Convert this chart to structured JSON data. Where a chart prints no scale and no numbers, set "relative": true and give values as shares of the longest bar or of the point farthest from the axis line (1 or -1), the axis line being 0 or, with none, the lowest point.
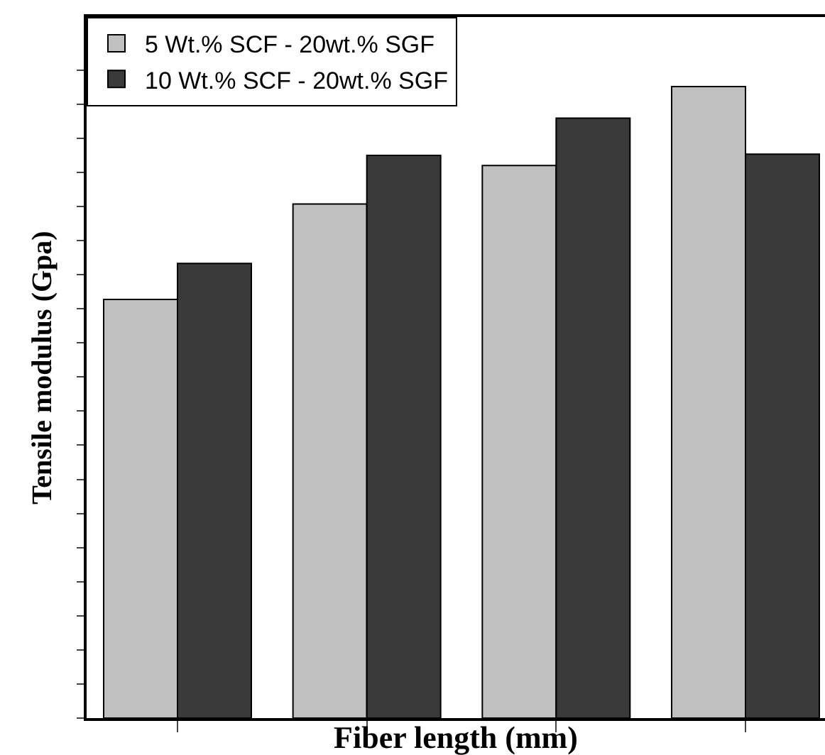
{
  "chart_data": {
    "type": "bar",
    "xlabel": "Fiber length (mm)",
    "ylabel": "Tensile modulus (Gpa)",
    "relative": true,
    "categories": [
      null,
      null,
      null,
      null
    ],
    "grid": false,
    "legend": "top left",
    "series": [
      {
        "name": "5 Wt.% SCF - 20wt.% SGF",
        "color": "#c0c0c0",
        "values": [
          0.663,
          0.814,
          0.875,
          1
        ]
      },
      {
        "name": "10 Wt.% SCF - 20wt.% SGF",
        "color": "#3a3a3a",
        "values": [
          0.72,
          0.891,
          0.95,
          0.893
        ]
      }
    ]
  }
}
